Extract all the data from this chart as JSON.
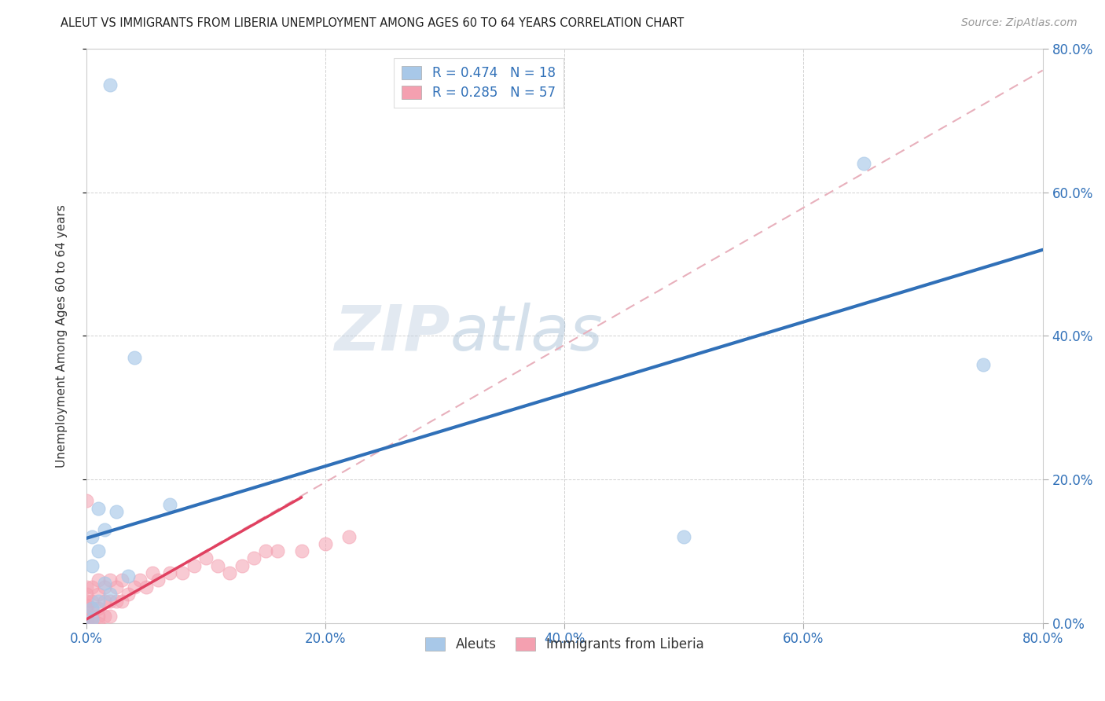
{
  "title": "ALEUT VS IMMIGRANTS FROM LIBERIA UNEMPLOYMENT AMONG AGES 60 TO 64 YEARS CORRELATION CHART",
  "source": "Source: ZipAtlas.com",
  "ylabel": "Unemployment Among Ages 60 to 64 years",
  "legend_label1": "Aleuts",
  "legend_label2": "Immigrants from Liberia",
  "r1": 0.474,
  "n1": 18,
  "r2": 0.285,
  "n2": 57,
  "color1": "#a8c8e8",
  "color2": "#f4a0b0",
  "trendline1_color": "#3070b8",
  "trendline2_solid_color": "#e04060",
  "trendline2_dash_color": "#e8b0bc",
  "watermark_zip": "ZIP",
  "watermark_atlas": "atlas",
  "xlim": [
    0.0,
    0.8
  ],
  "ylim": [
    0.0,
    0.8
  ],
  "xticks": [
    0.0,
    0.2,
    0.4,
    0.6,
    0.8
  ],
  "yticks": [
    0.0,
    0.2,
    0.4,
    0.6,
    0.8
  ],
  "xticklabels": [
    "0.0%",
    "20.0%",
    "40.0%",
    "60.0%",
    "80.0%"
  ],
  "yticklabels": [
    "0.0%",
    "20.0%",
    "40.0%",
    "60.0%",
    "80.0%"
  ],
  "aleuts_x": [
    0.02,
    0.04,
    0.01,
    0.025,
    0.015,
    0.005,
    0.01,
    0.005,
    0.035,
    0.015,
    0.02,
    0.01,
    0.005,
    0.5,
    0.65,
    0.75,
    0.005,
    0.07
  ],
  "aleuts_y": [
    0.75,
    0.37,
    0.16,
    0.155,
    0.13,
    0.12,
    0.1,
    0.08,
    0.065,
    0.055,
    0.04,
    0.03,
    0.02,
    0.12,
    0.64,
    0.36,
    0.005,
    0.165
  ],
  "liberia_x": [
    0.0,
    0.0,
    0.0,
    0.0,
    0.0,
    0.0,
    0.0,
    0.0,
    0.0,
    0.0,
    0.0,
    0.0,
    0.0,
    0.0,
    0.0,
    0.0,
    0.0,
    0.0,
    0.005,
    0.005,
    0.005,
    0.005,
    0.005,
    0.01,
    0.01,
    0.01,
    0.01,
    0.01,
    0.015,
    0.015,
    0.015,
    0.02,
    0.02,
    0.02,
    0.025,
    0.025,
    0.03,
    0.03,
    0.035,
    0.04,
    0.045,
    0.05,
    0.055,
    0.06,
    0.07,
    0.08,
    0.09,
    0.1,
    0.11,
    0.12,
    0.13,
    0.14,
    0.15,
    0.16,
    0.18,
    0.2,
    0.22
  ],
  "liberia_y": [
    0.0,
    0.0,
    0.0,
    0.0,
    0.0,
    0.0,
    0.0,
    0.0,
    0.0,
    0.0,
    0.01,
    0.01,
    0.02,
    0.025,
    0.03,
    0.04,
    0.05,
    0.17,
    0.0,
    0.01,
    0.02,
    0.03,
    0.05,
    0.0,
    0.01,
    0.02,
    0.04,
    0.06,
    0.01,
    0.03,
    0.05,
    0.01,
    0.03,
    0.06,
    0.03,
    0.05,
    0.03,
    0.06,
    0.04,
    0.05,
    0.06,
    0.05,
    0.07,
    0.06,
    0.07,
    0.07,
    0.08,
    0.09,
    0.08,
    0.07,
    0.08,
    0.09,
    0.1,
    0.1,
    0.1,
    0.11,
    0.12
  ],
  "trendline1_x0": 0.0,
  "trendline1_y0": 0.118,
  "trendline1_x1": 0.8,
  "trendline1_y1": 0.52,
  "trendline2_solid_x0": 0.0,
  "trendline2_solid_y0": 0.005,
  "trendline2_solid_x1": 0.18,
  "trendline2_solid_y1": 0.175,
  "trendline2_dash_x0": 0.0,
  "trendline2_dash_y0": 0.005,
  "trendline2_dash_x1": 0.8,
  "trendline2_dash_y1": 0.77
}
